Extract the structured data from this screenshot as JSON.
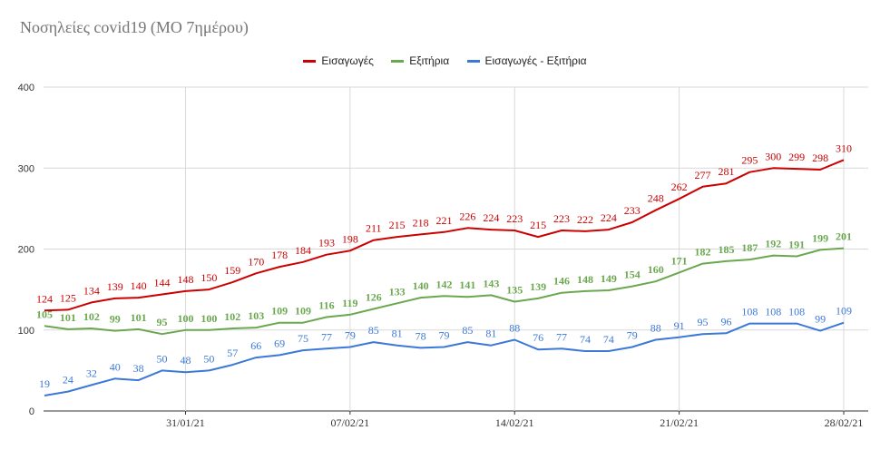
{
  "chart_data": {
    "type": "line",
    "title": "Νοσηλείες covid19 (ΜΟ 7ημέρου)",
    "xlabel": "",
    "ylabel": "",
    "ylim": [
      0,
      400
    ],
    "yticks": [
      "0",
      "100",
      "200",
      "300",
      "400"
    ],
    "xticks": [
      {
        "label": "31/01/21",
        "index": 6
      },
      {
        "label": "07/02/21",
        "index": 13
      },
      {
        "label": "14/02/21",
        "index": 20
      },
      {
        "label": "21/02/21",
        "index": 27
      },
      {
        "label": "28/02/21",
        "index": 34
      }
    ],
    "grid": true,
    "legend_position": "top",
    "series": [
      {
        "name": "Εισαγωγές",
        "color": "#cc0000",
        "bold_labels": false,
        "values": [
          124,
          125,
          134,
          139,
          140,
          144,
          148,
          150,
          159,
          170,
          178,
          184,
          193,
          198,
          211,
          215,
          218,
          221,
          226,
          224,
          223,
          215,
          223,
          222,
          224,
          233,
          248,
          262,
          277,
          281,
          295,
          300,
          299,
          298,
          310
        ]
      },
      {
        "name": "Εξιτήρια",
        "color": "#6aa84f",
        "bold_labels": true,
        "values": [
          105,
          101,
          102,
          99,
          101,
          95,
          100,
          100,
          102,
          103,
          109,
          109,
          116,
          119,
          126,
          133,
          140,
          142,
          141,
          143,
          135,
          139,
          146,
          148,
          149,
          154,
          160,
          171,
          182,
          185,
          187,
          192,
          191,
          199,
          201
        ]
      },
      {
        "name": "Εισαγωγές - Εξιτήρια",
        "color": "#3c78d8",
        "bold_labels": false,
        "values": [
          19,
          24,
          32,
          40,
          38,
          50,
          48,
          50,
          57,
          66,
          69,
          75,
          77,
          79,
          85,
          81,
          78,
          79,
          85,
          81,
          88,
          76,
          77,
          74,
          74,
          79,
          88,
          91,
          95,
          96,
          108,
          108,
          108,
          99,
          109
        ]
      }
    ]
  }
}
